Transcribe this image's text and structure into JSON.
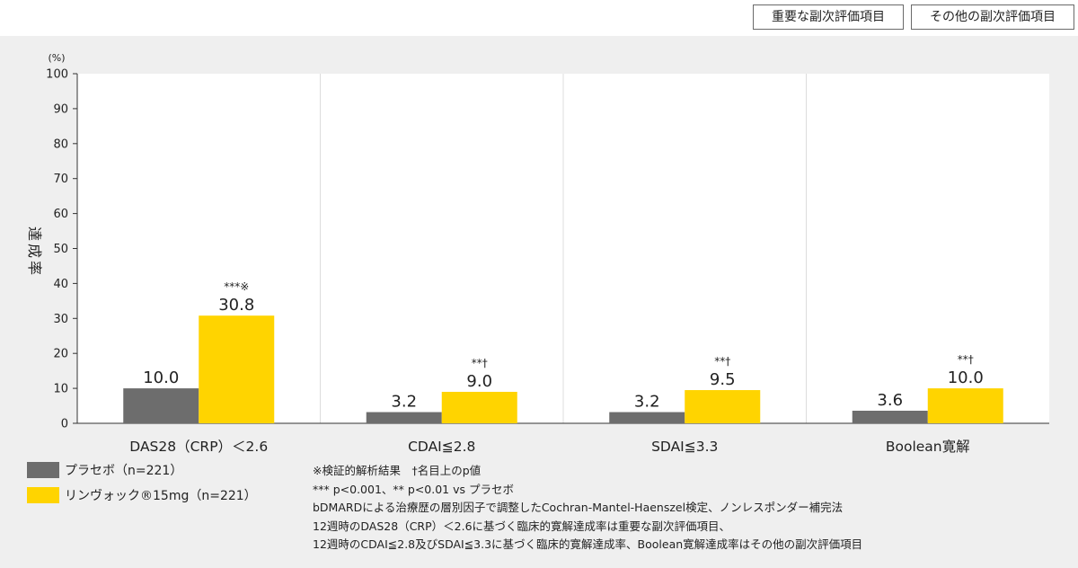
{
  "header": {
    "tag_key": "重要な副次評価項目",
    "tag_other": "その他の副次評価項目"
  },
  "colors": {
    "placebo": "#6d6d6d",
    "rinvoq": "#ffd400",
    "plot_bg": "#ffffff",
    "page_bg": "#efefef"
  },
  "chart_data": {
    "type": "bar",
    "categories": [
      "DAS28（CRP）＜2.6",
      "CDAI≦2.8",
      "SDAI≦3.3",
      "Boolean寛解"
    ],
    "series": [
      {
        "name": "プラセボ（n=221）",
        "color": "#6d6d6d",
        "values": [
          10.0,
          3.2,
          3.2,
          3.6
        ],
        "labels": [
          "10.0",
          "3.2",
          "3.2",
          "3.6"
        ]
      },
      {
        "name": "リンヴォック®15mg（n=221）",
        "color": "#ffd400",
        "values": [
          30.8,
          9.0,
          9.5,
          10.0
        ],
        "labels": [
          "30.8",
          "9.0",
          "9.5",
          "10.0"
        ],
        "annotations": [
          "***※",
          "**†",
          "**†",
          "**†"
        ]
      }
    ],
    "ylabel": "達成率",
    "yunit": "(%)",
    "ylim": [
      0,
      100
    ],
    "yticks": [
      0,
      10,
      20,
      30,
      40,
      50,
      60,
      70,
      80,
      90,
      100
    ],
    "grid": false,
    "legend_position": "bottom-left"
  },
  "notes": [
    "※検証的解析結果　†名目上のp値",
    "*** p<0.001、** p<0.01 vs プラセボ",
    "bDMARDによる治療歴の層別因子で調整したCochran-Mantel-Haenszel検定、ノンレスポンダー補完法",
    "12週時のDAS28（CRP）＜2.6に基づく臨床的寛解達成率は重要な副次評価項目、",
    "12週時のCDAI≦2.8及びSDAI≦3.3に基づく臨床的寛解達成率、Boolean寛解達成率はその他の副次評価項目"
  ]
}
